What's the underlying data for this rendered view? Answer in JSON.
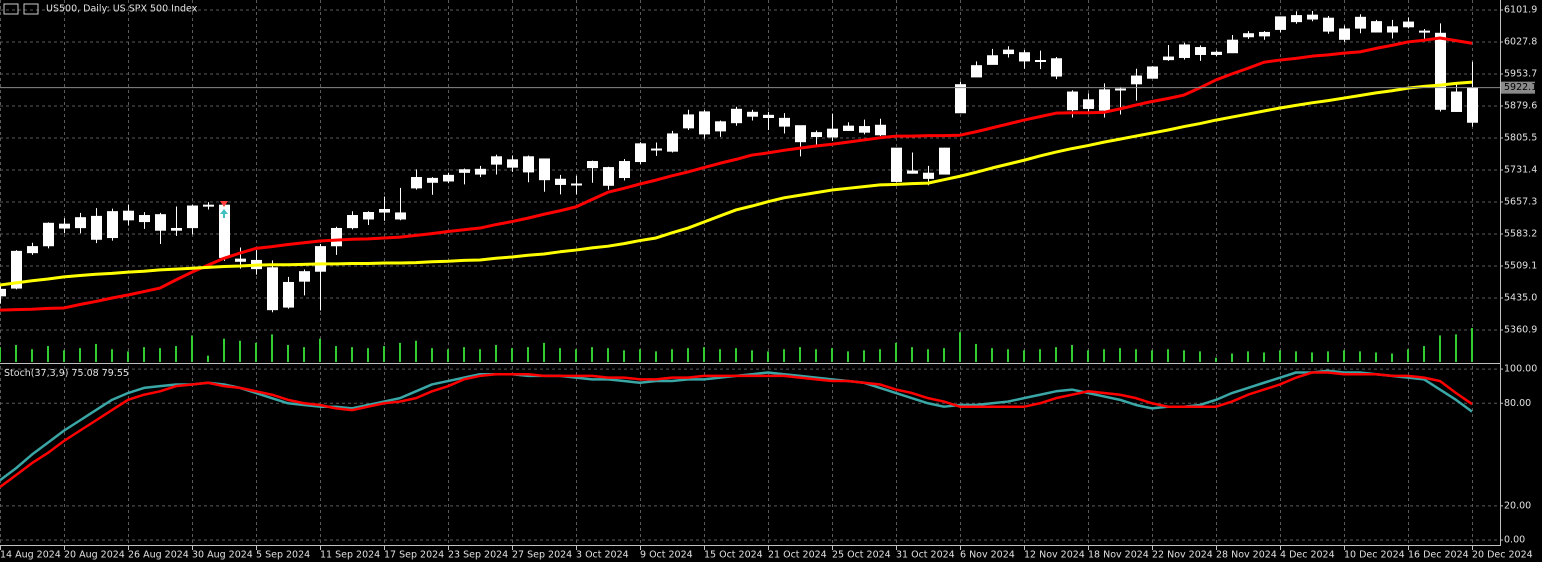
{
  "chart_data": [
    {
      "type": "candlestick",
      "title": "US500, Daily:  US SPX 500 Index",
      "categories": [
        "14 Aug 2024",
        null,
        null,
        null,
        "20 Aug 2024",
        null,
        null,
        null,
        "26 Aug 2024",
        null,
        null,
        null,
        "30 Aug 2024",
        null,
        null,
        null,
        "5 Sep 2024",
        null,
        null,
        null,
        "11 Sep 2024",
        null,
        null,
        null,
        "17 Sep 2024",
        null,
        null,
        null,
        "23 Sep 2024",
        null,
        null,
        null,
        "27 Sep 2024",
        null,
        null,
        null,
        "3 Oct 2024",
        null,
        null,
        null,
        "9 Oct 2024",
        null,
        null,
        null,
        "15 Oct 2024",
        null,
        null,
        null,
        "21 Oct 2024",
        null,
        null,
        null,
        "25 Oct 2024",
        null,
        null,
        null,
        "31 Oct 2024",
        null,
        null,
        null,
        "6 Nov 2024",
        null,
        null,
        null,
        "12 Nov 2024",
        null,
        null,
        null,
        "18 Nov 2024",
        null,
        null,
        null,
        "22 Nov 2024",
        null,
        null,
        null,
        "28 Nov 2024",
        null,
        null,
        null,
        "4 Dec 2024",
        null,
        null,
        null,
        "10 Dec 2024",
        null,
        null,
        null,
        "16 Dec 2024",
        null,
        null,
        null,
        "20 Dec 2024"
      ],
      "open": [
        5440,
        5458,
        5540,
        5556,
        5606,
        5598,
        5624,
        5575,
        5636,
        5612,
        5628,
        5596,
        5598,
        5648,
        5650,
        5525,
        5522,
        5505,
        5414,
        5474,
        5497,
        5556,
        5598,
        5618,
        5640,
        5632,
        5690,
        5712,
        5706,
        5726,
        5733,
        5762,
        5755,
        5727,
        5757,
        5698,
        5698,
        5737,
        5737,
        5714,
        5751,
        5778,
        5775,
        5829,
        5866,
        5822,
        5872,
        5856,
        5858,
        5833,
        5834,
        5818,
        5826,
        5833,
        5819,
        5835,
        5782,
        5724,
        5724,
        5722,
        5864,
        5947,
        5976,
        6009,
        6003,
        5985,
        5989,
        5912,
        5874,
        5870,
        5919,
        5931,
        5944,
        5993,
        5992,
        6015,
        5999,
        6003,
        6040,
        6042,
        6057,
        6089,
        6081,
        6083,
        6058,
        6060,
        6075,
        6063,
        6063,
        6053,
        6048,
        5912,
        5842
      ],
      "high": [
        5463,
        5546,
        5563,
        5610,
        5620,
        5632,
        5643,
        5642,
        5651,
        5634,
        5632,
        5647,
        5651,
        5657,
        5655,
        5552,
        5546,
        5522,
        5484,
        5501,
        5560,
        5600,
        5636,
        5636,
        5670,
        5690,
        5733,
        5715,
        5725,
        5735,
        5741,
        5767,
        5765,
        5765,
        5757,
        5720,
        5718,
        5753,
        5739,
        5757,
        5796,
        5795,
        5822,
        5871,
        5870,
        5846,
        5878,
        5871,
        5866,
        5863,
        5834,
        5823,
        5862,
        5842,
        5848,
        5850,
        5782,
        5772,
        5741,
        5783,
        5936,
        5983,
        6012,
        6018,
        6009,
        6008,
        5993,
        5916,
        5909,
        5932,
        5924,
        5966,
        5972,
        6021,
        6026,
        6020,
        6008,
        6044,
        6053,
        6053,
        6087,
        6099,
        6100,
        6088,
        6066,
        6092,
        6079,
        6079,
        6085,
        6058,
        6071,
        5935,
        5982
      ],
      "low": [
        5422,
        5455,
        5535,
        5550,
        5585,
        5585,
        5562,
        5568,
        5603,
        5595,
        5560,
        5579,
        5582,
        5640,
        5521,
        5503,
        5489,
        5402,
        5410,
        5441,
        5406,
        5535,
        5594,
        5604,
        5614,
        5615,
        5686,
        5674,
        5701,
        5698,
        5715,
        5721,
        5727,
        5703,
        5681,
        5675,
        5675,
        5702,
        5686,
        5707,
        5745,
        5764,
        5772,
        5824,
        5804,
        5808,
        5834,
        5846,
        5824,
        5816,
        5763,
        5784,
        5799,
        5823,
        5814,
        5810,
        5703,
        5723,
        5696,
        5722,
        5864,
        5947,
        5976,
        5992,
        5966,
        5965,
        5942,
        5853,
        5865,
        5853,
        5860,
        5892,
        5944,
        5984,
        5987,
        5984,
        5995,
        6003,
        6035,
        6033,
        6050,
        6070,
        6076,
        6047,
        6028,
        6048,
        6051,
        6036,
        6059,
        6032,
        5867,
        5866,
        5832
      ],
      "close": [
        5455,
        5543,
        5554,
        5608,
        5597,
        5621,
        5571,
        5635,
        5616,
        5626,
        5592,
        5592,
        5648,
        5650,
        5529,
        5520,
        5503,
        5408,
        5471,
        5496,
        5554,
        5596,
        5626,
        5633,
        5634,
        5618,
        5714,
        5703,
        5719,
        5732,
        5722,
        5745,
        5738,
        5762,
        5709,
        5710,
        5699,
        5751,
        5696,
        5751,
        5792,
        5780,
        5815,
        5859,
        5815,
        5843,
        5841,
        5865,
        5853,
        5851,
        5797,
        5809,
        5808,
        5823,
        5832,
        5813,
        5705,
        5729,
        5712,
        5782,
        5929,
        5973,
        5996,
        6001,
        5984,
        5985,
        5949,
        5871,
        5894,
        5917,
        5917,
        5949,
        5970,
        5987,
        6021,
        5999,
        6004,
        6032,
        6047,
        6050,
        6086,
        6075,
        6090,
        6053,
        6034,
        6085,
        6051,
        6051,
        6074,
        6051,
        5872,
        5867,
        5922.1
      ],
      "candle_color": "#ffffff",
      "series": [
        {
          "color": "#ff0000",
          "values": [
            5407,
            5408,
            5409,
            5411,
            5412,
            5420,
            5427,
            5435,
            5442,
            5450,
            5458,
            5477,
            5495,
            5511,
            5527,
            5539,
            5550,
            5554,
            5559,
            5563,
            5567,
            5569,
            5571,
            5572,
            5574,
            5576,
            5580,
            5584,
            5589,
            5593,
            5597,
            5605,
            5612,
            5620,
            5629,
            5637,
            5646,
            5663,
            5680,
            5689,
            5699,
            5708,
            5718,
            5727,
            5737,
            5747,
            5756,
            5766,
            5771,
            5777,
            5782,
            5787,
            5791,
            5796,
            5801,
            5806,
            5810,
            5810,
            5811,
            5811,
            5812,
            5820,
            5829,
            5838,
            5847,
            5855,
            5863,
            5864,
            5864,
            5865,
            5873,
            5882,
            5890,
            5897,
            5905,
            5922,
            5940,
            5954,
            5967,
            5981,
            5986,
            5990,
            5995,
            5998,
            6002,
            6005,
            6013,
            6020,
            6028,
            6032,
            6037,
            6031,
            6025
          ]
        },
        {
          "color": "#ffff00",
          "values": [
            5465,
            5470,
            5475,
            5479,
            5484,
            5487,
            5490,
            5492,
            5495,
            5497,
            5500,
            5502,
            5504,
            5506,
            5508,
            5509,
            5511,
            5512,
            5512,
            5513,
            5514,
            5514,
            5515,
            5515,
            5516,
            5516,
            5517,
            5519,
            5520,
            5522,
            5523,
            5527,
            5530,
            5534,
            5537,
            5542,
            5546,
            5551,
            5555,
            5561,
            5568,
            5574,
            5586,
            5597,
            5611,
            5625,
            5639,
            5648,
            5658,
            5667,
            5673,
            5679,
            5685,
            5689,
            5693,
            5697,
            5698,
            5700,
            5701,
            5709,
            5717,
            5726,
            5736,
            5745,
            5754,
            5764,
            5773,
            5781,
            5788,
            5796,
            5803,
            5810,
            5817,
            5824,
            5832,
            5839,
            5847,
            5854,
            5861,
            5868,
            5875,
            5881,
            5887,
            5892,
            5898,
            5904,
            5910,
            5915,
            5921,
            5925,
            5928,
            5932,
            5935
          ]
        }
      ],
      "volume": [
        14,
        16,
        12,
        15,
        11,
        13,
        17,
        12,
        10,
        14,
        13,
        15,
        25,
        6,
        22,
        20,
        18,
        26,
        16,
        14,
        22,
        15,
        14,
        13,
        15,
        18,
        20,
        13,
        12,
        14,
        12,
        16,
        13,
        14,
        18,
        13,
        12,
        14,
        13,
        11,
        12,
        10,
        12,
        13,
        14,
        12,
        13,
        11,
        10,
        12,
        14,
        12,
        13,
        10,
        11,
        12,
        18,
        14,
        12,
        13,
        28,
        17,
        13,
        12,
        11,
        12,
        14,
        16,
        11,
        12,
        13,
        12,
        11,
        12,
        11,
        10,
        4,
        8,
        10,
        9,
        11,
        10,
        9,
        10,
        11,
        10,
        9,
        8,
        12,
        15,
        25,
        26,
        32
      ],
      "volume_color": "#32cd32",
      "ylim": [
        5286.8,
        6125.1
      ],
      "yticks": [
        6101.9,
        6027.8,
        5953.7,
        5879.6,
        5805.5,
        5731.4,
        5657.3,
        5583.2,
        5509.1,
        {
          "value": 5435.0,
          "label": "5435.0"
        },
        5360.9
      ],
      "grid": true
    },
    {
      "type": "line",
      "title": "Stoch(37,3,9)",
      "series": [
        {
          "color": "#3aa6a6",
          "values": [
            35,
            42,
            50,
            57,
            64,
            70,
            76,
            82,
            86,
            89,
            90,
            91,
            91,
            92,
            91,
            89,
            86,
            83,
            80,
            79,
            78,
            78,
            77,
            79,
            81,
            83,
            87,
            91,
            93,
            95,
            97,
            97,
            97,
            96,
            96,
            96,
            95,
            94,
            94,
            93,
            92,
            93,
            93,
            94,
            94,
            95,
            96,
            97,
            98,
            97,
            96,
            95,
            94,
            93,
            92,
            89,
            86,
            83,
            80,
            78,
            79,
            79,
            80,
            81,
            83,
            85,
            87,
            88,
            86,
            84,
            82,
            79,
            77,
            78,
            78,
            79,
            82,
            86,
            89,
            92,
            95,
            98,
            98,
            99,
            98,
            98,
            97,
            96,
            95,
            94,
            88,
            82,
            75.08
          ]
        },
        {
          "color": "#ff0000",
          "values": [
            31,
            38,
            45,
            51,
            58,
            64,
            70,
            76,
            82,
            85,
            87,
            90,
            91,
            92,
            90,
            89,
            87,
            85,
            82,
            80,
            79,
            77,
            76,
            78,
            80,
            81,
            83,
            87,
            90,
            94,
            96,
            97,
            97,
            97,
            96,
            96,
            96,
            96,
            95,
            95,
            94,
            94,
            95,
            95,
            96,
            96,
            96,
            96,
            96,
            96,
            95,
            94,
            93,
            93,
            92,
            91,
            88,
            86,
            83,
            81,
            78,
            78,
            78,
            78,
            78,
            80,
            83,
            85,
            87,
            86,
            85,
            83,
            80,
            78,
            78,
            78,
            78,
            81,
            85,
            88,
            91,
            95,
            98,
            98,
            97,
            97,
            97,
            96,
            96,
            95,
            93,
            86,
            79.55
          ]
        }
      ],
      "ylim": [
        -2.9,
        101.8
      ],
      "yticks": [
        {
          "value": 100,
          "label": "100.00"
        },
        {
          "value": 80,
          "label": "80.00"
        },
        {
          "value": 20,
          "label": "20.00"
        },
        {
          "value": 0,
          "label": "0.00"
        }
      ],
      "grid": true
    }
  ]
}
